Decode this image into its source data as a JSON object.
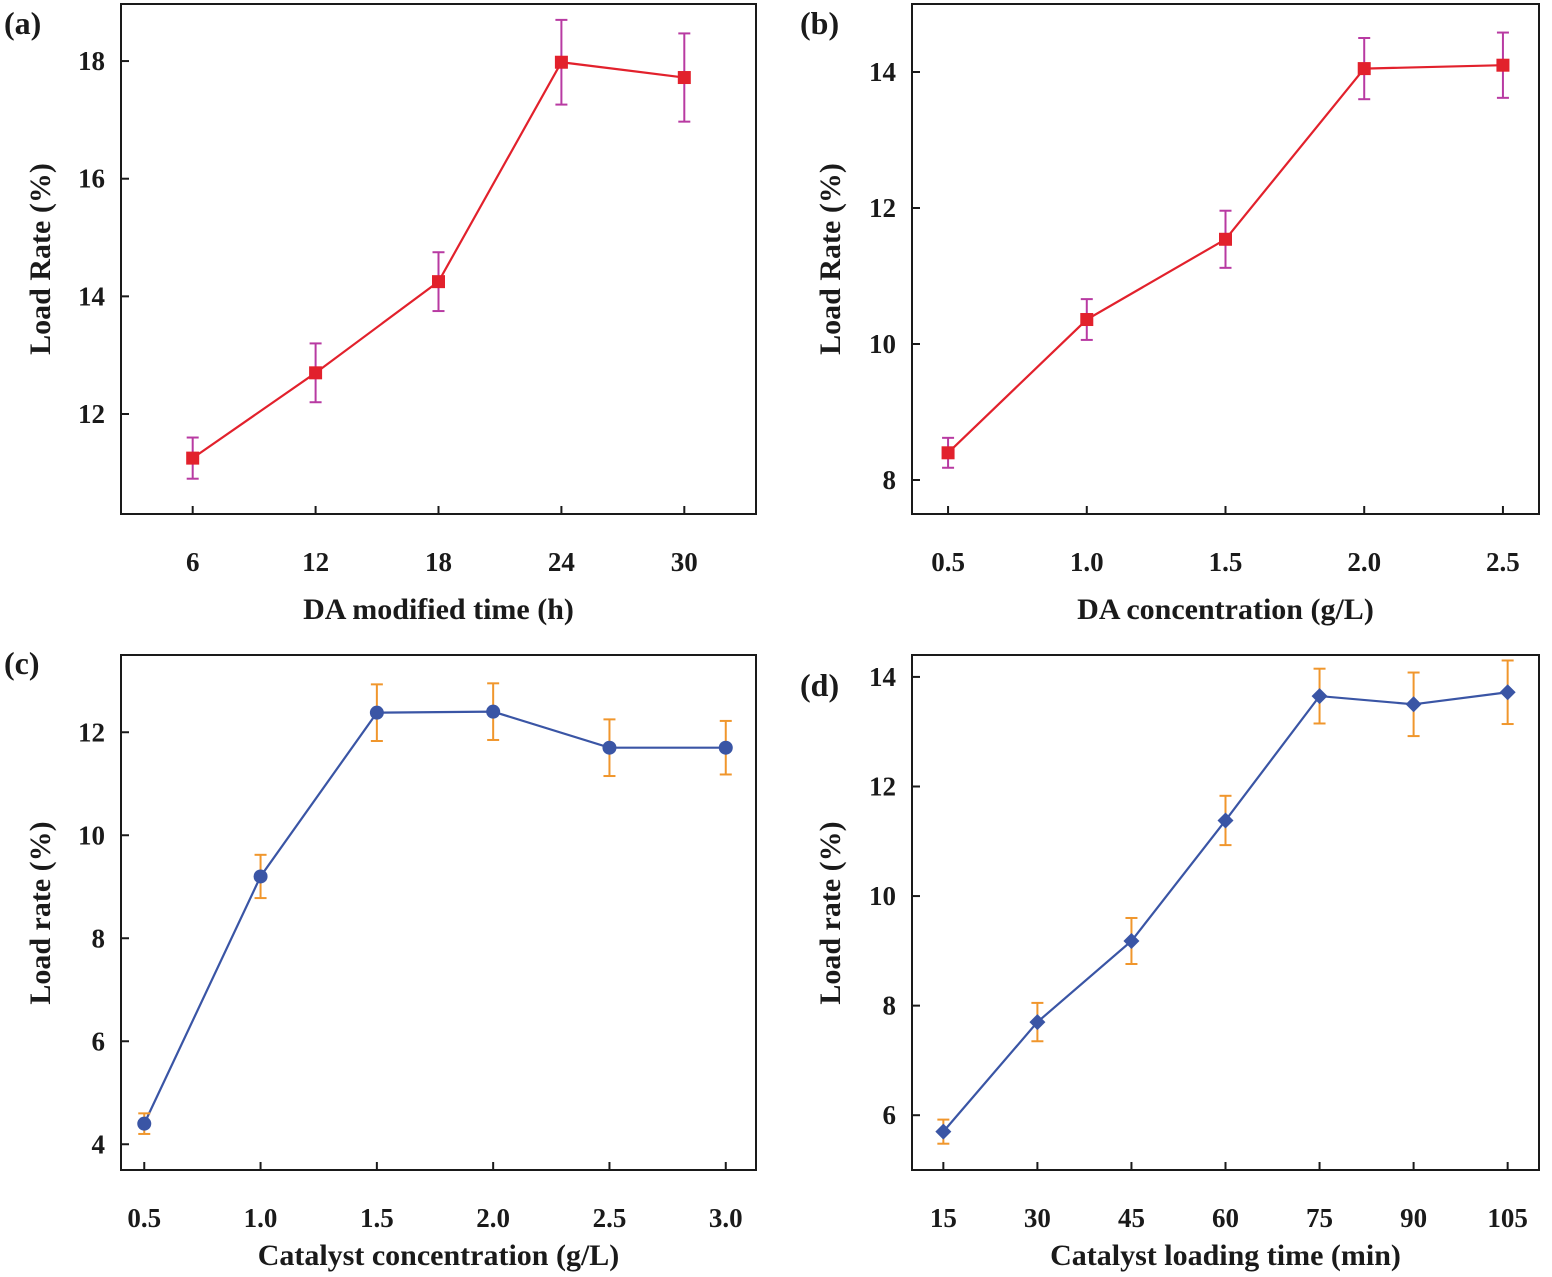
{
  "chart_data": [
    {
      "type": "line",
      "panel_label": "(a)",
      "xlabel": "DA modified time (h)",
      "ylabel": "Load Rate (%)",
      "x": [
        6,
        12,
        18,
        24,
        30
      ],
      "x_ticks": [
        6,
        12,
        18,
        24,
        30
      ],
      "x_tick_labels": [
        "6",
        "12",
        "18",
        "24",
        "30"
      ],
      "y_ticks": [
        12,
        14,
        16,
        18
      ],
      "y_tick_labels": [
        "12",
        "14",
        "16",
        "18"
      ],
      "xlim": [
        2.5,
        33.5
      ],
      "ylim": [
        10.3,
        18.97
      ],
      "series": [
        {
          "name": "Load Rate",
          "values": [
            11.25,
            12.7,
            14.25,
            17.98,
            17.72
          ],
          "errors": [
            0.35,
            0.5,
            0.5,
            0.72,
            0.75
          ],
          "marker": "square",
          "line_color": "#e2212c",
          "marker_color": "#e2212c",
          "error_color": "#b83aa2"
        }
      ]
    },
    {
      "type": "line",
      "panel_label": "(b)",
      "xlabel": "DA concentration (g/L)",
      "ylabel": "Load Rate (%)",
      "x": [
        0.5,
        1.0,
        1.5,
        2.0,
        2.5
      ],
      "x_ticks": [
        0.5,
        1.0,
        1.5,
        2.0,
        2.5
      ],
      "x_tick_labels": [
        "0.5",
        "1.0",
        "1.5",
        "2.0",
        "2.5"
      ],
      "y_ticks": [
        8,
        10,
        12,
        14
      ],
      "y_tick_labels": [
        "8",
        "10",
        "12",
        "14"
      ],
      "xlim": [
        0.37,
        2.63
      ],
      "ylim": [
        7.5,
        15.0
      ],
      "series": [
        {
          "name": "Load Rate",
          "values": [
            8.4,
            10.36,
            11.54,
            14.05,
            14.1
          ],
          "errors": [
            0.22,
            0.3,
            0.42,
            0.45,
            0.48
          ],
          "marker": "square",
          "line_color": "#e2212c",
          "marker_color": "#e2212c",
          "error_color": "#b83aa2"
        }
      ]
    },
    {
      "type": "line",
      "panel_label": "(c)",
      "xlabel": "Catalyst concentration (g/L)",
      "ylabel": "Load rate (%)",
      "x": [
        0.5,
        1.0,
        1.5,
        2.0,
        2.5,
        3.0
      ],
      "x_ticks": [
        0.5,
        1.0,
        1.5,
        2.0,
        2.5,
        3.0
      ],
      "x_tick_labels": [
        "0.5",
        "1.0",
        "1.5",
        "2.0",
        "2.5",
        "3.0"
      ],
      "y_ticks": [
        4,
        6,
        8,
        10,
        12
      ],
      "y_tick_labels": [
        "4",
        "6",
        "8",
        "10",
        "12"
      ],
      "xlim": [
        0.4,
        3.13
      ],
      "ylim": [
        3.5,
        13.5
      ],
      "series": [
        {
          "name": "Load rate",
          "values": [
            4.4,
            9.2,
            12.38,
            12.4,
            11.7,
            11.7
          ],
          "errors": [
            0.2,
            0.42,
            0.55,
            0.55,
            0.55,
            0.52
          ],
          "marker": "circle",
          "line_color": "#3a55a5",
          "marker_color": "#3a55a5",
          "error_color": "#f0962c"
        }
      ]
    },
    {
      "type": "line",
      "panel_label": "(d)",
      "xlabel": "Catalyst loading time (min)",
      "ylabel": "Load rate (%)",
      "x": [
        15,
        30,
        45,
        60,
        75,
        90,
        105
      ],
      "x_ticks": [
        15,
        30,
        45,
        60,
        75,
        90,
        105
      ],
      "x_tick_labels": [
        "15",
        "30",
        "45",
        "60",
        "75",
        "90",
        "105"
      ],
      "y_ticks": [
        6,
        8,
        10,
        12,
        14
      ],
      "y_tick_labels": [
        "6",
        "8",
        "10",
        "12",
        "14"
      ],
      "xlim": [
        10,
        110
      ],
      "ylim": [
        5.0,
        14.4
      ],
      "series": [
        {
          "name": "Load rate",
          "values": [
            5.7,
            7.7,
            9.18,
            11.38,
            13.65,
            13.5,
            13.72
          ],
          "errors": [
            0.22,
            0.35,
            0.42,
            0.45,
            0.5,
            0.58,
            0.58
          ],
          "marker": "diamond",
          "line_color": "#3a55a5",
          "marker_color": "#3a55a5",
          "error_color": "#f0962c"
        }
      ]
    }
  ]
}
